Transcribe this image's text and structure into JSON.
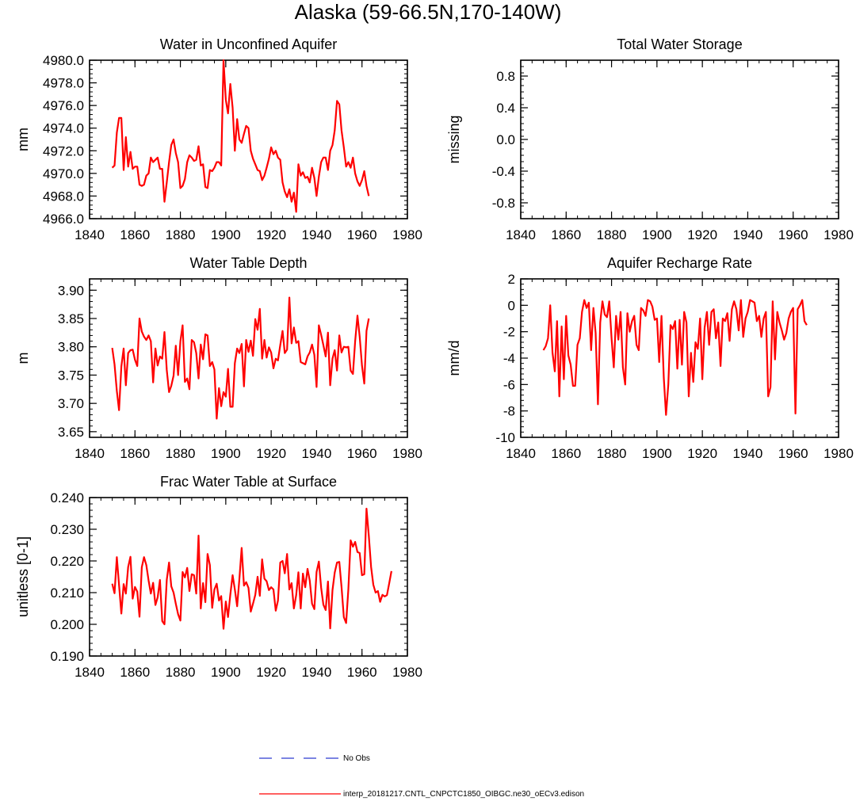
{
  "page": {
    "title": "Alaska (59-66.5N,170-140W)"
  },
  "legend": {
    "obs_label": "No Obs",
    "model_label": "interp_20181217.CNTL_CNPCTC1850_OIBGC.ne30_oECv3.edison",
    "obs_color": "#2e3ad1",
    "model_color": "#ff0000"
  },
  "chart_data": [
    {
      "type": "line",
      "title": "Water in Unconfined Aquifer",
      "ylabel": "mm",
      "xlabel": "",
      "xlim": [
        1840,
        1980
      ],
      "ylim": [
        4966,
        4980
      ],
      "xticks": [
        1840,
        1860,
        1880,
        1900,
        1920,
        1940,
        1960,
        1980
      ],
      "yticks": [
        4966,
        4968,
        4970,
        4972,
        4974,
        4976,
        4978,
        4980
      ],
      "ytick_decimals": 1,
      "series": [
        {
          "name": "interp_20181217.CNTL_CNPCTC1850_OIBGC.ne30_oECv3.edison",
          "color": "#ff0000",
          "x_start": 1850,
          "values": [
            4970.5,
            4970.7,
            4973.6,
            4974.9,
            4974.9,
            4970.3,
            4973.2,
            4970.6,
            4971.9,
            4970.4,
            4970.6,
            4970.6,
            4969.0,
            4968.9,
            4969.0,
            4969.8,
            4970.0,
            4971.4,
            4971.0,
            4971.2,
            4971.4,
            4970.4,
            4970.4,
            4967.5,
            4969.2,
            4971.0,
            4972.5,
            4973.0,
            4971.8,
            4971.0,
            4968.7,
            4968.9,
            4969.5,
            4971.0,
            4971.6,
            4971.4,
            4971.1,
            4971.2,
            4972.4,
            4970.7,
            4970.8,
            4968.8,
            4968.7,
            4970.3,
            4970.2,
            4970.5,
            4971.0,
            4971.0,
            4970.7,
            4980.0,
            4976.5,
            4975.3,
            4977.9,
            4975.8,
            4972.0,
            4974.8,
            4973.0,
            4972.7,
            4973.5,
            4974.2,
            4974.0,
            4972.0,
            4971.3,
            4970.8,
            4970.3,
            4970.2,
            4969.4,
            4969.8,
            4970.5,
            4971.3,
            4972.3,
            4971.7,
            4972.0,
            4971.4,
            4971.2,
            4969.2,
            4968.4,
            4967.9,
            4968.6,
            4967.5,
            4968.3,
            4966.6,
            4970.8,
            4969.8,
            4970.1,
            4969.6,
            4969.7,
            4969.2,
            4970.5,
            4969.6,
            4968.0,
            4969.7,
            4971.0,
            4971.4,
            4971.4,
            4970.3,
            4972.0,
            4972.5,
            4973.8,
            4976.4,
            4976.1,
            4973.8,
            4972.3,
            4970.6,
            4971.0,
            4970.5,
            4971.4,
            4970.0,
            4969.3,
            4968.9,
            4969.4,
            4970.2,
            4968.9,
            4968.0
          ]
        }
      ]
    },
    {
      "type": "line",
      "title": "Total Water Storage",
      "ylabel": "missing",
      "xlabel": "",
      "xlim": [
        1840,
        1980
      ],
      "ylim": [
        -1,
        1
      ],
      "xticks": [
        1840,
        1860,
        1880,
        1900,
        1920,
        1940,
        1960,
        1980
      ],
      "yticks": [
        -0.8,
        -0.4,
        0.0,
        0.4,
        0.8
      ],
      "ytick_decimals": 1,
      "series": []
    },
    {
      "type": "line",
      "title": "Water Table Depth",
      "ylabel": "m",
      "xlabel": "",
      "xlim": [
        1840,
        1980
      ],
      "ylim": [
        3.64,
        3.92
      ],
      "xticks": [
        1840,
        1860,
        1880,
        1900,
        1920,
        1940,
        1960,
        1980
      ],
      "yticks": [
        3.65,
        3.7,
        3.75,
        3.8,
        3.85,
        3.9
      ],
      "ytick_decimals": 2,
      "series": [
        {
          "name": "interp_20181217.CNTL_CNPCTC1850_OIBGC.ne30_oECv3.edison",
          "color": "#ff0000",
          "x_start": 1850,
          "values": [
            3.798,
            3.769,
            3.722,
            3.688,
            3.765,
            3.797,
            3.732,
            3.789,
            3.794,
            3.795,
            3.777,
            3.766,
            3.85,
            3.827,
            3.818,
            3.812,
            3.82,
            3.81,
            3.737,
            3.797,
            3.767,
            3.783,
            3.779,
            3.826,
            3.759,
            3.72,
            3.731,
            3.749,
            3.802,
            3.75,
            3.81,
            3.838,
            3.738,
            3.744,
            3.725,
            3.812,
            3.808,
            3.789,
            3.744,
            3.804,
            3.778,
            3.822,
            3.82,
            3.766,
            3.773,
            3.76,
            3.673,
            3.727,
            3.695,
            3.72,
            3.712,
            3.761,
            3.694,
            3.694,
            3.771,
            3.797,
            3.789,
            3.805,
            3.73,
            3.812,
            3.791,
            3.811,
            3.784,
            3.849,
            3.83,
            3.867,
            3.779,
            3.812,
            3.781,
            3.799,
            3.79,
            3.762,
            3.779,
            3.776,
            3.803,
            3.828,
            3.789,
            3.795,
            3.887,
            3.806,
            3.834,
            3.807,
            3.81,
            3.773,
            3.771,
            3.769,
            3.783,
            3.79,
            3.804,
            3.786,
            3.729,
            3.838,
            3.821,
            3.803,
            3.783,
            3.825,
            3.732,
            3.779,
            3.794,
            3.758,
            3.82,
            3.79,
            3.8,
            3.799,
            3.8,
            3.758,
            3.752,
            3.81,
            3.855,
            3.818,
            3.767,
            3.735,
            3.828,
            3.85
          ]
        }
      ]
    },
    {
      "type": "line",
      "title": "Aquifer Recharge Rate",
      "ylabel": "mm/d",
      "xlabel": "",
      "xlim": [
        1840,
        1980
      ],
      "ylim": [
        -10,
        2
      ],
      "xticks": [
        1840,
        1860,
        1880,
        1900,
        1920,
        1940,
        1960,
        1980
      ],
      "yticks": [
        -10,
        -8,
        -6,
        -4,
        -2,
        0,
        2
      ],
      "ytick_decimals": 0,
      "series": [
        {
          "name": "interp_20181217.CNTL_CNPCTC1850_OIBGC.ne30_oECv3.edison",
          "color": "#ff0000",
          "x_start": 1850,
          "values": [
            -3.4,
            -3.1,
            -2.5,
            0.0,
            -3.6,
            -5.0,
            -1.2,
            -6.9,
            -1.6,
            -5.6,
            -0.8,
            -3.8,
            -4.5,
            -6.1,
            -6.1,
            -3.0,
            -2.5,
            -0.5,
            0.4,
            -0.2,
            0.2,
            -3.4,
            -0.2,
            -2.1,
            -7.5,
            -1.3,
            0.3,
            -0.7,
            -0.9,
            0.3,
            -2.5,
            -4.7,
            -0.8,
            -2.6,
            -0.5,
            -4.7,
            -6.0,
            -0.6,
            -2.0,
            -1.2,
            -0.8,
            -3.0,
            -3.4,
            -0.2,
            -0.4,
            -0.8,
            0.4,
            0.3,
            -0.1,
            -1.1,
            -1.0,
            -4.3,
            -0.8,
            -5.5,
            -8.3,
            -6.0,
            -1.5,
            -1.8,
            -1.2,
            -4.8,
            -1.1,
            -4.5,
            -0.5,
            -1.3,
            -6.9,
            -3.6,
            -5.8,
            -2.8,
            -3.3,
            -1.0,
            -5.6,
            -1.7,
            -0.5,
            -3.0,
            -0.5,
            -0.3,
            -2.5,
            -1.3,
            -4.6,
            -1.0,
            -1.2,
            -0.6,
            -2.7,
            -0.3,
            0.3,
            -0.3,
            -1.9,
            0.4,
            -2.4,
            -1.0,
            -0.5,
            0.4,
            0.3,
            0.2,
            -1.2,
            -0.8,
            -2.4,
            -1.0,
            -0.5,
            -6.9,
            -6.2,
            0.3,
            -4.1,
            -0.5,
            -1.3,
            -1.9,
            -2.6,
            -2.1,
            -1.0,
            -0.5,
            -0.2,
            -8.2,
            -0.3,
            0.0,
            0.4,
            -1.2,
            -1.5
          ]
        }
      ]
    },
    {
      "type": "line",
      "title": "Frac Water Table at Surface",
      "ylabel": "unitless [0-1]",
      "xlabel": "",
      "xlim": [
        1840,
        1980
      ],
      "ylim": [
        0.19,
        0.24
      ],
      "xticks": [
        1840,
        1860,
        1880,
        1900,
        1920,
        1940,
        1960,
        1980
      ],
      "yticks": [
        0.19,
        0.2,
        0.21,
        0.22,
        0.23,
        0.24
      ],
      "ytick_decimals": 3,
      "series": [
        {
          "name": "interp_20181217.CNTL_CNPCTC1850_OIBGC.ne30_oECv3.edison",
          "color": "#ff0000",
          "x_start": 1850,
          "values": [
            0.2128,
            0.2098,
            0.2212,
            0.2124,
            0.2034,
            0.2127,
            0.2097,
            0.2181,
            0.2213,
            0.2081,
            0.2118,
            0.2103,
            0.2024,
            0.218,
            0.2212,
            0.2187,
            0.2138,
            0.2097,
            0.2131,
            0.2061,
            0.2085,
            0.214,
            0.201,
            0.2,
            0.214,
            0.2195,
            0.212,
            0.21,
            0.2065,
            0.2032,
            0.2012,
            0.2165,
            0.2148,
            0.2178,
            0.2105,
            0.2158,
            0.2155,
            0.2097,
            0.228,
            0.205,
            0.213,
            0.207,
            0.2222,
            0.2187,
            0.2052,
            0.211,
            0.2128,
            0.2075,
            0.2089,
            0.1986,
            0.2072,
            0.2023,
            0.2094,
            0.2155,
            0.211,
            0.2057,
            0.2142,
            0.2241,
            0.2122,
            0.2133,
            0.2115,
            0.204,
            0.2065,
            0.2093,
            0.215,
            0.209,
            0.2205,
            0.2144,
            0.2136,
            0.2108,
            0.2117,
            0.211,
            0.2043,
            0.2075,
            0.2195,
            0.22,
            0.2161,
            0.2222,
            0.211,
            0.213,
            0.205,
            0.2092,
            0.2164,
            0.205,
            0.216,
            0.2117,
            0.2175,
            0.2138,
            0.2065,
            0.2048,
            0.2165,
            0.2198,
            0.2115,
            0.2062,
            0.2045,
            0.2135,
            0.1987,
            0.2108,
            0.2163,
            0.2195,
            0.2197,
            0.2118,
            0.2023,
            0.2004,
            0.211,
            0.2265,
            0.2245,
            0.226,
            0.2228,
            0.2225,
            0.2155,
            0.2158,
            0.2365,
            0.228,
            0.2181,
            0.2125,
            0.21,
            0.2105,
            0.2071,
            0.2093,
            0.2088,
            0.2092,
            0.213,
            0.2168
          ]
        }
      ]
    }
  ]
}
